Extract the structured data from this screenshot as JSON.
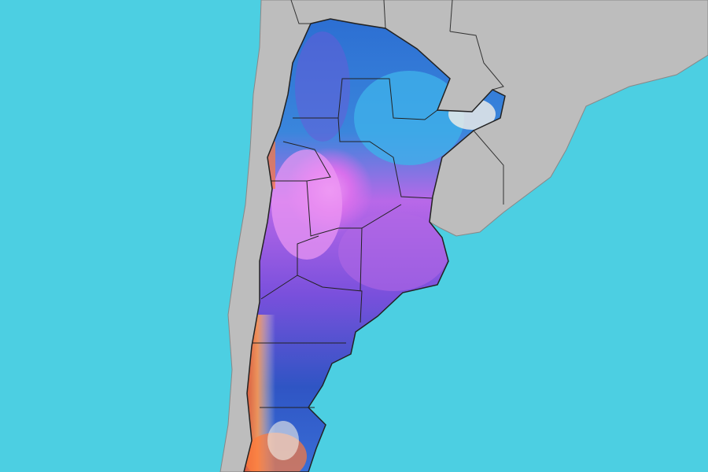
{
  "map": {
    "kind": "weather-field-map",
    "region": "Argentina",
    "colors": {
      "ocean": "#4ccfe2",
      "land": "#bdbdbd",
      "land_border": "#3a3a3a",
      "field_north": "#2c6ed2",
      "field_northeast": "#3fb0ea",
      "field_center": "#d870ec",
      "field_center_light": "#ee98f4",
      "field_south": "#7a50dc",
      "field_far_south": "#2f55c4",
      "field_warm": "#ff7a3a",
      "field_hot": "#e03a20",
      "field_pale": "#f4f0e8"
    }
  }
}
